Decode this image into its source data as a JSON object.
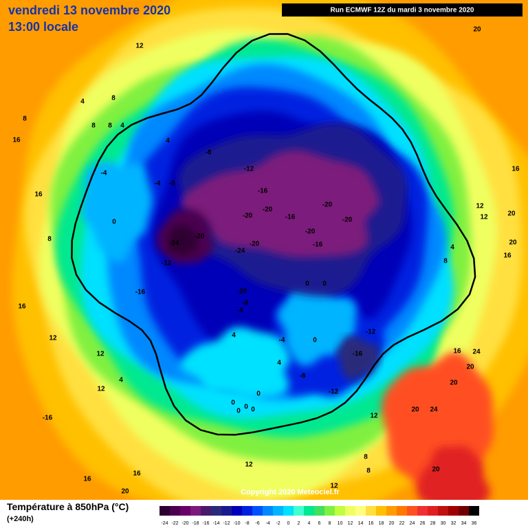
{
  "header": {
    "date": "vendredi 13 novembre 2020",
    "time": "13:00 locale",
    "run": "Run ECMWF 12Z du mardi 3 novembre 2020"
  },
  "footer": {
    "title": "Température à 850hPa (°C)",
    "lead": "(+240h)",
    "copyright": "Copyright 2020 Meteociel.fr"
  },
  "scale": {
    "values": [
      -24,
      -22,
      -20,
      -18,
      -16,
      -14,
      -12,
      -10,
      -8,
      -6,
      -4,
      -2,
      0,
      2,
      4,
      6,
      8,
      10,
      12,
      14,
      16,
      18,
      20,
      22,
      24,
      26,
      28,
      30,
      32,
      34,
      36
    ],
    "colors": [
      "#2d0030",
      "#4b0050",
      "#6a006a",
      "#7c1a7c",
      "#4a1a6a",
      "#2a2a7a",
      "#1a1a90",
      "#0000b8",
      "#0020e0",
      "#0050ff",
      "#0088ff",
      "#00b4ff",
      "#00e0ff",
      "#40ffd0",
      "#00e890",
      "#40e060",
      "#80f040",
      "#c0ff40",
      "#f0ff60",
      "#ffff80",
      "#ffe040",
      "#ffc000",
      "#ff9c00",
      "#ff7800",
      "#ff5020",
      "#f03030",
      "#e02020",
      "#c01010",
      "#a00000",
      "#700000",
      "#000000"
    ]
  },
  "contour_labels": [
    20,
    12,
    4,
    8,
    8,
    8,
    8,
    4,
    16,
    4,
    -8,
    -12,
    -4,
    -4,
    -8,
    16,
    -16,
    -20,
    -20,
    -16,
    -20,
    -20,
    -20,
    -20,
    -24,
    -20,
    -16,
    -24,
    -12,
    0,
    8,
    12,
    12,
    20,
    16,
    20,
    16,
    8,
    4,
    0,
    0,
    -16,
    -20,
    -8,
    -4,
    16,
    12,
    -12,
    4,
    -4,
    0,
    -16,
    12,
    4,
    -8,
    16,
    24,
    20,
    20,
    4,
    12,
    -12,
    0,
    0,
    0,
    0,
    0,
    -16,
    12,
    20,
    24,
    8,
    8,
    20,
    16,
    16,
    12,
    12,
    20
  ]
}
